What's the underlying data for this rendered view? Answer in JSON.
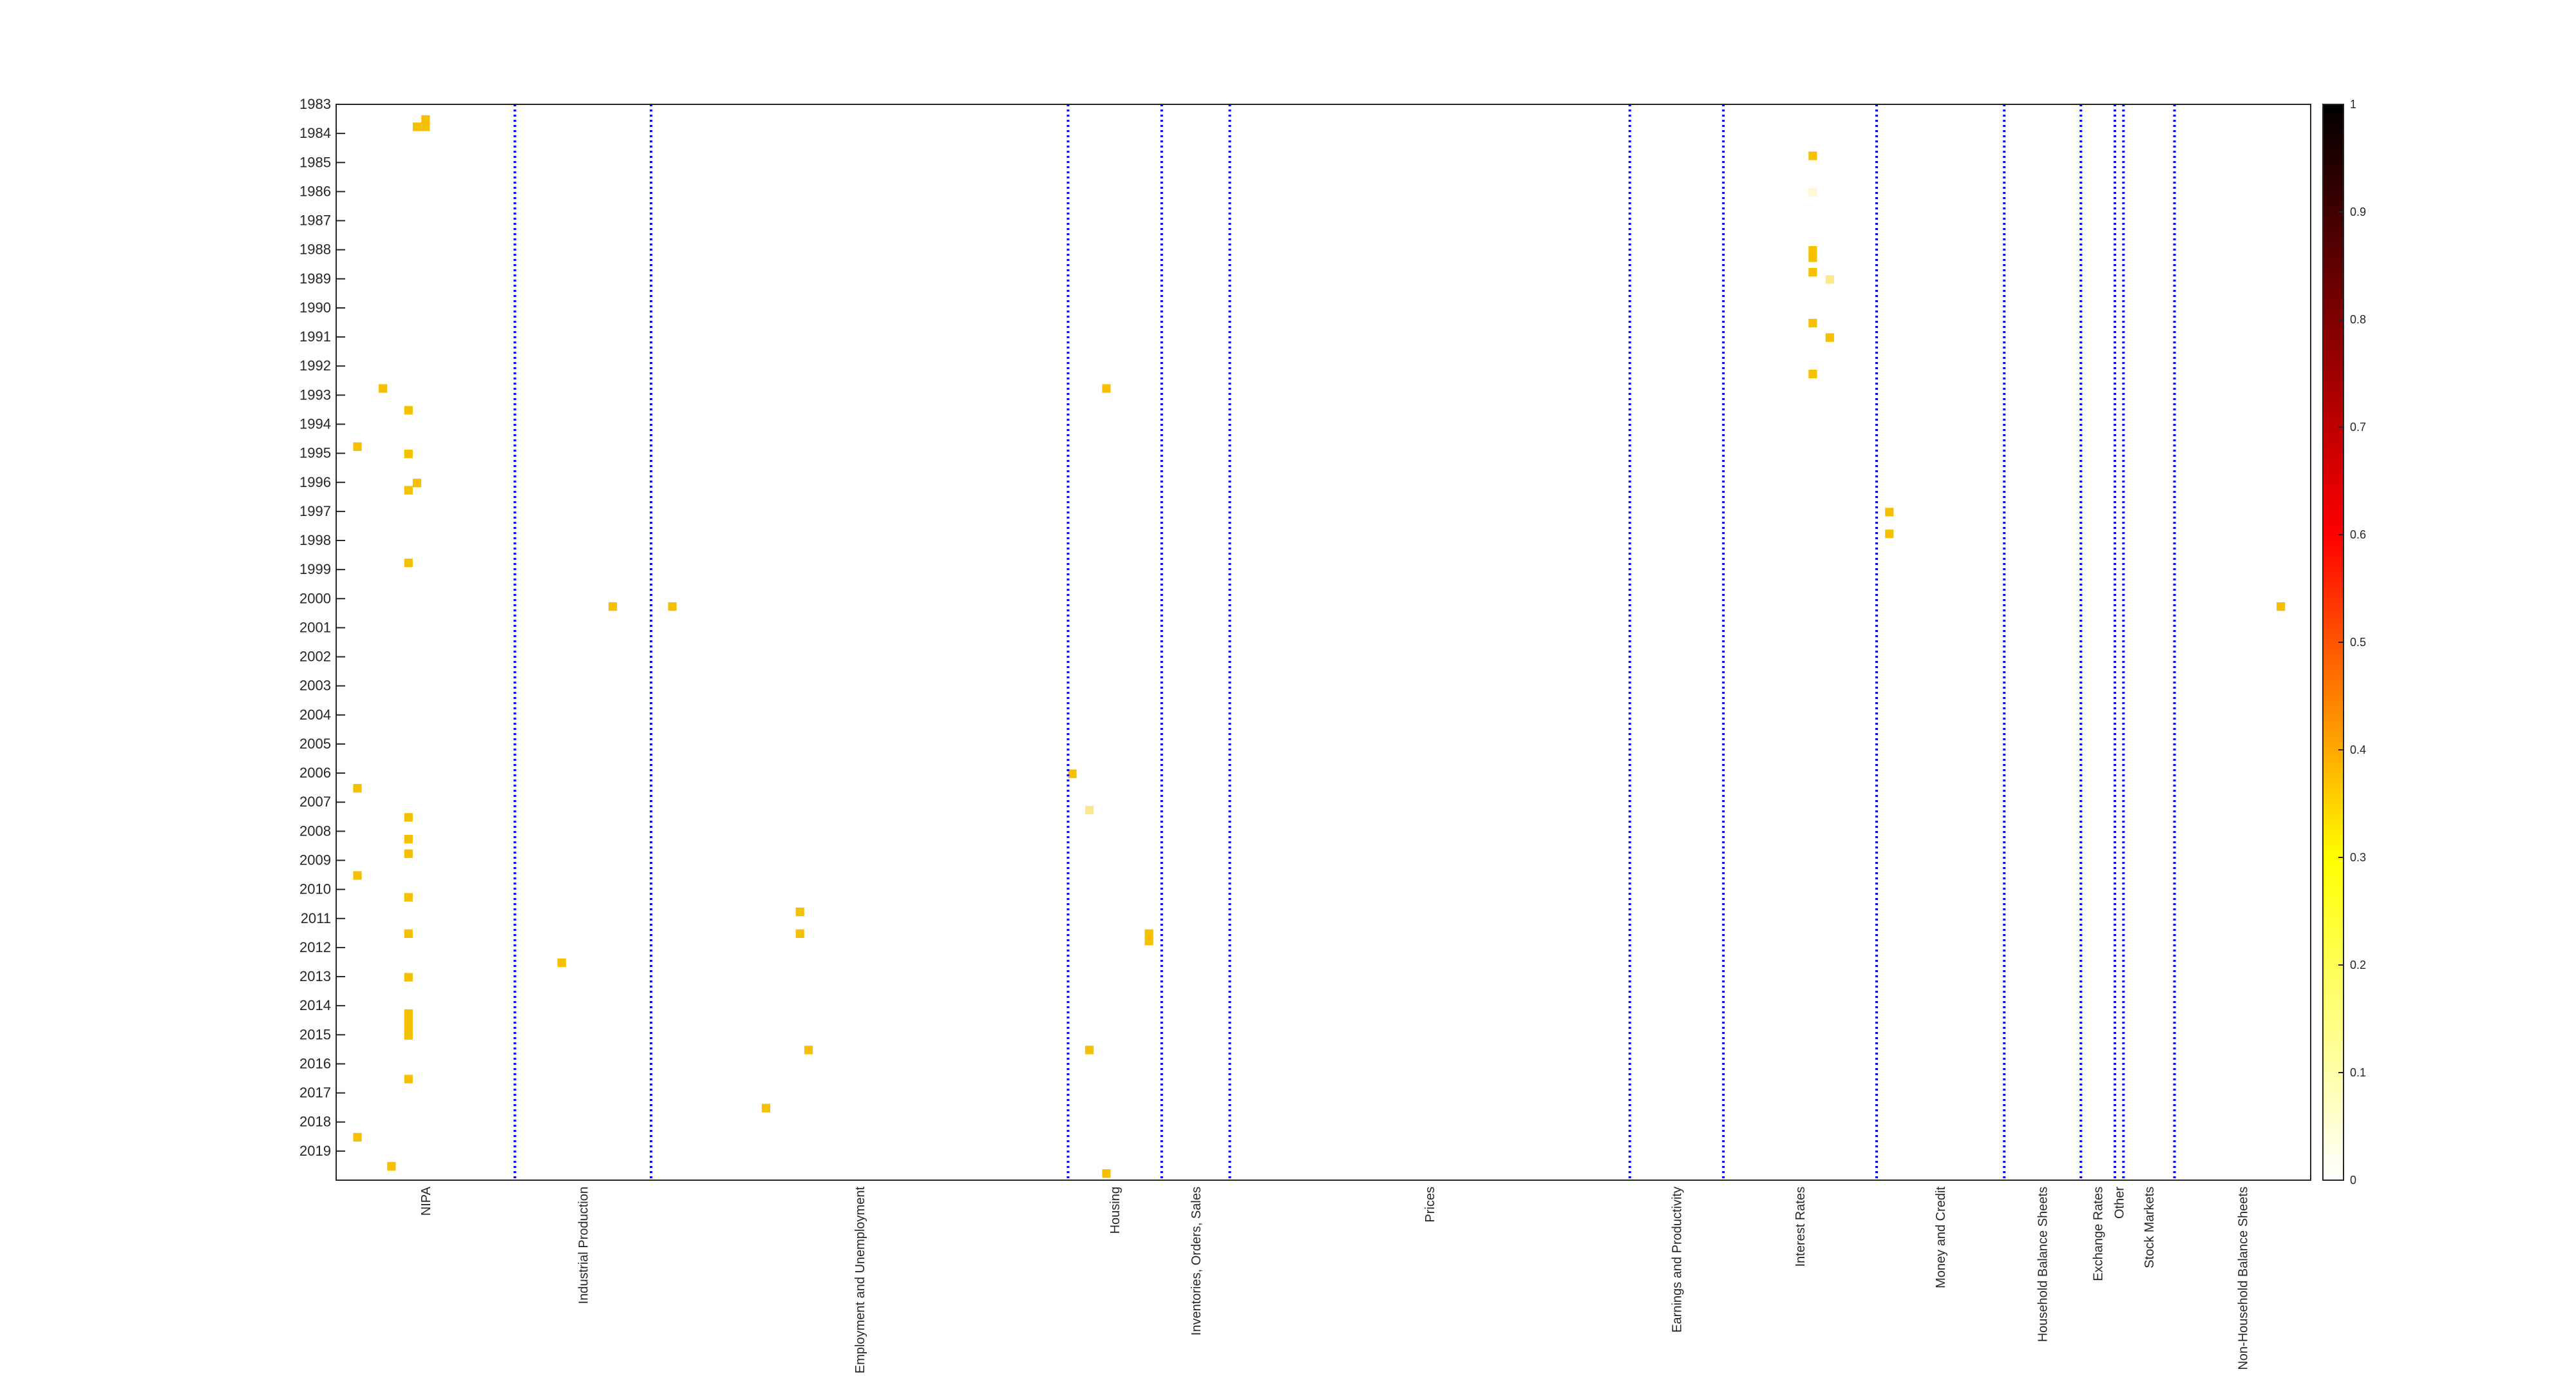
{
  "chart_data": {
    "type": "heatmap",
    "title": "",
    "xlabel": "",
    "ylabel": "",
    "y_ticks": [
      "1983",
      "1984",
      "1985",
      "1986",
      "1987",
      "1988",
      "1989",
      "1990",
      "1991",
      "1992",
      "1993",
      "1994",
      "1995",
      "1996",
      "1997",
      "1998",
      "1999",
      "2000",
      "2001",
      "2002",
      "2003",
      "2004",
      "2005",
      "2006",
      "2007",
      "2008",
      "2009",
      "2010",
      "2011",
      "2012",
      "2013",
      "2014",
      "2015",
      "2016",
      "2017",
      "2018",
      "2019"
    ],
    "ylim": [
      1983,
      2020
    ],
    "x_total_columns": 232,
    "groups": [
      {
        "label": "NIPA",
        "start": 0,
        "end": 21
      },
      {
        "label": "Industrial Production",
        "start": 21,
        "end": 37
      },
      {
        "label": "Employment and Unemployment",
        "start": 37,
        "end": 86
      },
      {
        "label": "Housing",
        "start": 86,
        "end": 97
      },
      {
        "label": "Inventories, Orders, Sales",
        "start": 97,
        "end": 105
      },
      {
        "label": "Prices",
        "start": 105,
        "end": 152
      },
      {
        "label": "Earnings and Productivity",
        "start": 152,
        "end": 163
      },
      {
        "label": "Interest Rates",
        "start": 163,
        "end": 181
      },
      {
        "label": "Money and Credit",
        "start": 181,
        "end": 196
      },
      {
        "label": "Household Balance Sheets",
        "start": 196,
        "end": 205
      },
      {
        "label": "Exchange Rates",
        "start": 205,
        "end": 209
      },
      {
        "label": "Other",
        "start": 209,
        "end": 210
      },
      {
        "label": "Stock Markets",
        "start": 210,
        "end": 216
      },
      {
        "label": "Non-Household Balance Sheets",
        "start": 216,
        "end": 232
      }
    ],
    "grid": false,
    "colorbar": {
      "min": 0,
      "max": 1,
      "ticks": [
        "0",
        "0.1",
        "0.2",
        "0.3",
        "0.4",
        "0.5",
        "0.6",
        "0.7",
        "0.8",
        "0.9",
        "1"
      ],
      "placement": "right"
    },
    "cells": [
      {
        "col": 9,
        "t": 1983.75,
        "v": 0.3
      },
      {
        "col": 10,
        "t": 1983.75,
        "v": 0.3
      },
      {
        "col": 10,
        "t": 1983.5,
        "v": 0.3
      },
      {
        "col": 5,
        "t": 1992.75,
        "v": 0.3
      },
      {
        "col": 8,
        "t": 1993.5,
        "v": 0.3
      },
      {
        "col": 2,
        "t": 1994.75,
        "v": 0.3
      },
      {
        "col": 8,
        "t": 1995.0,
        "v": 0.3
      },
      {
        "col": 9,
        "t": 1996.0,
        "v": 0.3
      },
      {
        "col": 8,
        "t": 1996.25,
        "v": 0.3
      },
      {
        "col": 8,
        "t": 1998.75,
        "v": 0.3
      },
      {
        "col": 32,
        "t": 2000.25,
        "v": 0.3
      },
      {
        "col": 39,
        "t": 2000.25,
        "v": 0.3
      },
      {
        "col": 2,
        "t": 2006.5,
        "v": 0.3
      },
      {
        "col": 8,
        "t": 2007.5,
        "v": 0.3
      },
      {
        "col": 8,
        "t": 2008.25,
        "v": 0.3
      },
      {
        "col": 8,
        "t": 2008.75,
        "v": 0.3
      },
      {
        "col": 2,
        "t": 2009.5,
        "v": 0.3
      },
      {
        "col": 8,
        "t": 2010.25,
        "v": 0.3
      },
      {
        "col": 8,
        "t": 2011.5,
        "v": 0.3
      },
      {
        "col": 26,
        "t": 2012.5,
        "v": 0.3
      },
      {
        "col": 8,
        "t": 2013.0,
        "v": 0.3
      },
      {
        "col": 8,
        "t": 2014.25,
        "v": 0.3
      },
      {
        "col": 8,
        "t": 2014.5,
        "v": 0.3
      },
      {
        "col": 8,
        "t": 2014.75,
        "v": 0.3
      },
      {
        "col": 8,
        "t": 2015.0,
        "v": 0.3
      },
      {
        "col": 8,
        "t": 2016.5,
        "v": 0.3
      },
      {
        "col": 2,
        "t": 2018.5,
        "v": 0.3
      },
      {
        "col": 6,
        "t": 2019.5,
        "v": 0.3
      },
      {
        "col": 54,
        "t": 2010.75,
        "v": 0.3
      },
      {
        "col": 54,
        "t": 2011.5,
        "v": 0.3
      },
      {
        "col": 55,
        "t": 2015.5,
        "v": 0.3
      },
      {
        "col": 50,
        "t": 2017.5,
        "v": 0.3
      },
      {
        "col": 90,
        "t": 1992.75,
        "v": 0.3
      },
      {
        "col": 86,
        "t": 2006.0,
        "v": 0.3
      },
      {
        "col": 88,
        "t": 2007.25,
        "v": 0.15
      },
      {
        "col": 95,
        "t": 2011.5,
        "v": 0.3
      },
      {
        "col": 95,
        "t": 2011.75,
        "v": 0.3
      },
      {
        "col": 88,
        "t": 2015.5,
        "v": 0.3
      },
      {
        "col": 90,
        "t": 2019.75,
        "v": 0.3
      },
      {
        "col": 173,
        "t": 1984.75,
        "v": 0.3
      },
      {
        "col": 173,
        "t": 1986.0,
        "v": 0.05
      },
      {
        "col": 173,
        "t": 1988.0,
        "v": 0.3
      },
      {
        "col": 173,
        "t": 1988.25,
        "v": 0.3
      },
      {
        "col": 173,
        "t": 1988.75,
        "v": 0.3
      },
      {
        "col": 175,
        "t": 1989.0,
        "v": 0.15
      },
      {
        "col": 173,
        "t": 1990.5,
        "v": 0.3
      },
      {
        "col": 175,
        "t": 1991.0,
        "v": 0.3
      },
      {
        "col": 173,
        "t": 1992.25,
        "v": 0.3
      },
      {
        "col": 182,
        "t": 1997.0,
        "v": 0.3
      },
      {
        "col": 182,
        "t": 1997.75,
        "v": 0.3
      },
      {
        "col": 228,
        "t": 2000.25,
        "v": 0.3
      }
    ]
  }
}
